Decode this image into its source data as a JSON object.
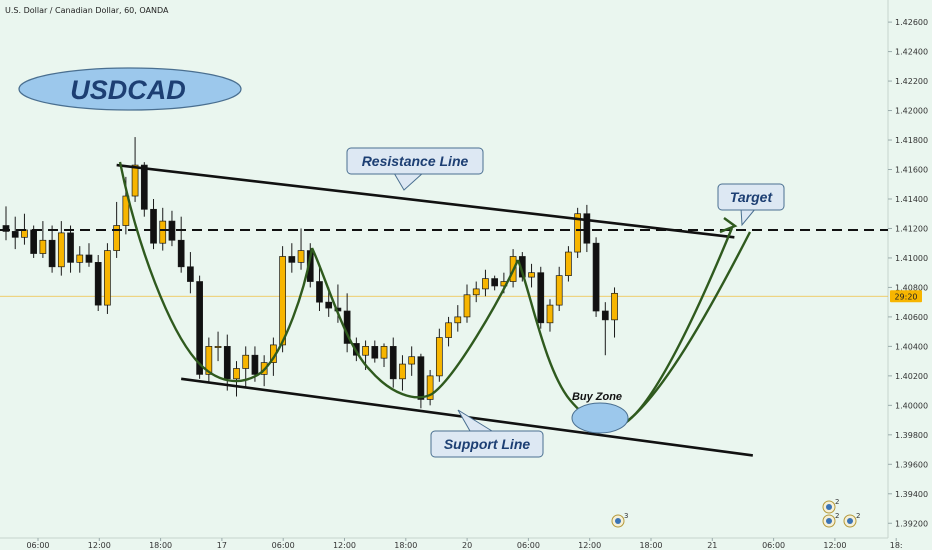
{
  "header": {
    "title": "U.S. Dollar / Canadian Dollar, 60, OANDA"
  },
  "logo_text": "USDCAD",
  "colors": {
    "background": "#eaf6ef",
    "up_candle": "#f7b500",
    "down_candle": "#111111",
    "pattern_curve": "#2f5a1e",
    "label_box_fill": "#dde8f3",
    "label_text": "#1d3f73",
    "price_line": "#f0c040"
  },
  "current_price_label": "29:20",
  "annotations": {
    "resistance": "Resistance Line",
    "support": "Support Line",
    "target": "Target",
    "buy_zone": "Buy Zone"
  },
  "event_badges": [
    "3",
    "2",
    "2",
    "2"
  ],
  "chart_data": {
    "type": "candlestick",
    "symbol": "USDCAD",
    "timeframe": "60",
    "source": "OANDA",
    "ylim": [
      1.391,
      1.4275
    ],
    "y_ticks": [
      "1.42600",
      "1.42400",
      "1.42200",
      "1.42000",
      "1.41800",
      "1.41600",
      "1.41400",
      "1.41200",
      "1.41000",
      "1.40800",
      "1.40600",
      "1.40400",
      "1.40200",
      "1.40000",
      "1.39800",
      "1.39600",
      "1.39400",
      "1.39200"
    ],
    "x_ticks": [
      "06:00",
      "12:00",
      "18:00",
      "17",
      "06:00",
      "12:00",
      "18:00",
      "20",
      "06:00",
      "12:00",
      "18:00",
      "21",
      "06:00",
      "12:00",
      "18:"
    ],
    "current_price": 1.4074,
    "dashed_level": 1.4119,
    "candles": [
      {
        "o": 1.4122,
        "h": 1.4135,
        "l": 1.4112,
        "c": 1.4118
      },
      {
        "o": 1.4118,
        "h": 1.4128,
        "l": 1.4106,
        "c": 1.4114
      },
      {
        "o": 1.4114,
        "h": 1.413,
        "l": 1.4109,
        "c": 1.4119
      },
      {
        "o": 1.4119,
        "h": 1.4122,
        "l": 1.41,
        "c": 1.4103
      },
      {
        "o": 1.4103,
        "h": 1.4125,
        "l": 1.41,
        "c": 1.4112
      },
      {
        "o": 1.4112,
        "h": 1.4122,
        "l": 1.409,
        "c": 1.4094
      },
      {
        "o": 1.4094,
        "h": 1.4125,
        "l": 1.4088,
        "c": 1.4117
      },
      {
        "o": 1.4117,
        "h": 1.4122,
        "l": 1.409,
        "c": 1.4097
      },
      {
        "o": 1.4097,
        "h": 1.4108,
        "l": 1.409,
        "c": 1.4102
      },
      {
        "o": 1.4102,
        "h": 1.411,
        "l": 1.4094,
        "c": 1.4097
      },
      {
        "o": 1.4097,
        "h": 1.4102,
        "l": 1.4064,
        "c": 1.4068
      },
      {
        "o": 1.4068,
        "h": 1.411,
        "l": 1.4062,
        "c": 1.4105
      },
      {
        "o": 1.4105,
        "h": 1.4138,
        "l": 1.41,
        "c": 1.4122
      },
      {
        "o": 1.4122,
        "h": 1.4155,
        "l": 1.4116,
        "c": 1.4142
      },
      {
        "o": 1.4142,
        "h": 1.4182,
        "l": 1.4138,
        "c": 1.4163
      },
      {
        "o": 1.4163,
        "h": 1.4165,
        "l": 1.4128,
        "c": 1.4133
      },
      {
        "o": 1.4133,
        "h": 1.414,
        "l": 1.4106,
        "c": 1.411
      },
      {
        "o": 1.411,
        "h": 1.4134,
        "l": 1.4105,
        "c": 1.4125
      },
      {
        "o": 1.4125,
        "h": 1.4132,
        "l": 1.4108,
        "c": 1.4112
      },
      {
        "o": 1.4112,
        "h": 1.4128,
        "l": 1.409,
        "c": 1.4094
      },
      {
        "o": 1.4094,
        "h": 1.4104,
        "l": 1.4076,
        "c": 1.4084
      },
      {
        "o": 1.4084,
        "h": 1.4088,
        "l": 1.4018,
        "c": 1.4021
      },
      {
        "o": 1.4021,
        "h": 1.4046,
        "l": 1.4015,
        "c": 1.404
      },
      {
        "o": 1.404,
        "h": 1.405,
        "l": 1.403,
        "c": 1.404
      },
      {
        "o": 1.404,
        "h": 1.4048,
        "l": 1.401,
        "c": 1.4018
      },
      {
        "o": 1.4018,
        "h": 1.403,
        "l": 1.4006,
        "c": 1.4025
      },
      {
        "o": 1.4025,
        "h": 1.404,
        "l": 1.4012,
        "c": 1.4034
      },
      {
        "o": 1.4034,
        "h": 1.404,
        "l": 1.4016,
        "c": 1.4021
      },
      {
        "o": 1.4021,
        "h": 1.4034,
        "l": 1.4013,
        "c": 1.4029
      },
      {
        "o": 1.4029,
        "h": 1.4046,
        "l": 1.402,
        "c": 1.4041
      },
      {
        "o": 1.4041,
        "h": 1.4108,
        "l": 1.4036,
        "c": 1.4101
      },
      {
        "o": 1.4101,
        "h": 1.411,
        "l": 1.409,
        "c": 1.4097
      },
      {
        "o": 1.4097,
        "h": 1.412,
        "l": 1.4092,
        "c": 1.4105
      },
      {
        "o": 1.4105,
        "h": 1.411,
        "l": 1.408,
        "c": 1.4084
      },
      {
        "o": 1.4084,
        "h": 1.4094,
        "l": 1.4064,
        "c": 1.407
      },
      {
        "o": 1.407,
        "h": 1.408,
        "l": 1.406,
        "c": 1.4066
      },
      {
        "o": 1.4066,
        "h": 1.4082,
        "l": 1.4056,
        "c": 1.4064
      },
      {
        "o": 1.4064,
        "h": 1.4076,
        "l": 1.4036,
        "c": 1.4042
      },
      {
        "o": 1.4042,
        "h": 1.4046,
        "l": 1.403,
        "c": 1.4034
      },
      {
        "o": 1.4034,
        "h": 1.4044,
        "l": 1.4024,
        "c": 1.404
      },
      {
        "o": 1.404,
        "h": 1.4044,
        "l": 1.4029,
        "c": 1.4032
      },
      {
        "o": 1.4032,
        "h": 1.4042,
        "l": 1.4026,
        "c": 1.404
      },
      {
        "o": 1.404,
        "h": 1.4046,
        "l": 1.4012,
        "c": 1.4018
      },
      {
        "o": 1.4018,
        "h": 1.4034,
        "l": 1.401,
        "c": 1.4028
      },
      {
        "o": 1.4028,
        "h": 1.404,
        "l": 1.402,
        "c": 1.4033
      },
      {
        "o": 1.4033,
        "h": 1.4035,
        "l": 1.3998,
        "c": 1.4004
      },
      {
        "o": 1.4004,
        "h": 1.4024,
        "l": 1.4,
        "c": 1.402
      },
      {
        "o": 1.402,
        "h": 1.4052,
        "l": 1.4016,
        "c": 1.4046
      },
      {
        "o": 1.4046,
        "h": 1.406,
        "l": 1.404,
        "c": 1.4056
      },
      {
        "o": 1.4056,
        "h": 1.4068,
        "l": 1.405,
        "c": 1.406
      },
      {
        "o": 1.406,
        "h": 1.4082,
        "l": 1.4056,
        "c": 1.4075
      },
      {
        "o": 1.4075,
        "h": 1.4084,
        "l": 1.407,
        "c": 1.4079
      },
      {
        "o": 1.4079,
        "h": 1.4092,
        "l": 1.4074,
        "c": 1.4086
      },
      {
        "o": 1.4086,
        "h": 1.4088,
        "l": 1.4078,
        "c": 1.4081
      },
      {
        "o": 1.4081,
        "h": 1.409,
        "l": 1.4076,
        "c": 1.4084
      },
      {
        "o": 1.4084,
        "h": 1.4106,
        "l": 1.408,
        "c": 1.4101
      },
      {
        "o": 1.4101,
        "h": 1.4104,
        "l": 1.4084,
        "c": 1.4087
      },
      {
        "o": 1.4087,
        "h": 1.4096,
        "l": 1.408,
        "c": 1.409
      },
      {
        "o": 1.409,
        "h": 1.4094,
        "l": 1.4052,
        "c": 1.4056
      },
      {
        "o": 1.4056,
        "h": 1.4072,
        "l": 1.405,
        "c": 1.4068
      },
      {
        "o": 1.4068,
        "h": 1.4094,
        "l": 1.4064,
        "c": 1.4088
      },
      {
        "o": 1.4088,
        "h": 1.4108,
        "l": 1.4084,
        "c": 1.4104
      },
      {
        "o": 1.4104,
        "h": 1.4134,
        "l": 1.41,
        "c": 1.413
      },
      {
        "o": 1.413,
        "h": 1.4136,
        "l": 1.4104,
        "c": 1.411
      },
      {
        "o": 1.411,
        "h": 1.4114,
        "l": 1.406,
        "c": 1.4064
      },
      {
        "o": 1.4064,
        "h": 1.407,
        "l": 1.4034,
        "c": 1.4058
      },
      {
        "o": 1.4058,
        "h": 1.408,
        "l": 1.4046,
        "c": 1.4076
      }
    ],
    "lines": {
      "resistance": [
        [
          0,
          1.4163
        ],
        [
          79,
          1.4114
        ]
      ],
      "support": [
        [
          2,
          1.4018
        ],
        [
          81,
          1.3966
        ]
      ]
    }
  }
}
